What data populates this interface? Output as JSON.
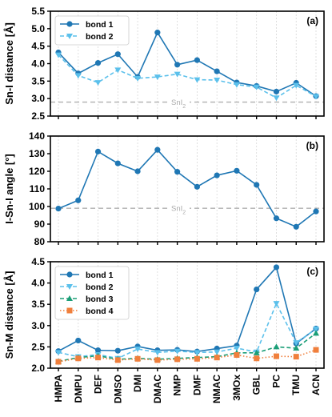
{
  "categories": [
    "HMPA",
    "DMPU",
    "DEF",
    "DMSO",
    "DMI",
    "DMAC",
    "NMP",
    "DMF",
    "NMAC",
    "3MOx",
    "GBL",
    "PC",
    "TMU",
    "ACN"
  ],
  "chart_data": [
    {
      "type": "line",
      "panel": "(a)",
      "ylabel": "Sn-I distance [Å]",
      "ylim": [
        2.5,
        5.5
      ],
      "yticks": [
        "2.5",
        "3.0",
        "3.5",
        "4.0",
        "4.5",
        "5.0",
        "5.5"
      ],
      "reference": {
        "label": "SnI2",
        "text": "SnI",
        "sub": "2",
        "value": 2.9
      },
      "series": [
        {
          "name": "bond 1",
          "style": "solid",
          "marker": "circle",
          "color": "#1f77b4",
          "values": [
            4.32,
            3.72,
            4.02,
            4.27,
            3.62,
            4.89,
            3.97,
            4.1,
            3.78,
            3.46,
            3.36,
            3.2,
            3.45,
            3.07
          ]
        },
        {
          "name": "bond 2",
          "style": "dashed",
          "marker": "triangle-down",
          "color": "#5bc0eb",
          "values": [
            4.25,
            3.66,
            3.46,
            3.82,
            3.58,
            3.62,
            3.7,
            3.54,
            3.53,
            3.4,
            3.33,
            3.02,
            3.38,
            3.06
          ]
        }
      ],
      "legend": "top-left"
    },
    {
      "type": "line",
      "panel": "(b)",
      "ylabel": "I-Sn-I angle [°]",
      "ylim": [
        80,
        140
      ],
      "yticks": [
        "80",
        "90",
        "100",
        "110",
        "120",
        "130",
        "140"
      ],
      "reference": {
        "label": "SnI2",
        "text": "SnI",
        "sub": "2",
        "value": 99
      },
      "series": [
        {
          "style": "solid",
          "marker": "circle",
          "color": "#1f77b4",
          "values": [
            98.8,
            103.5,
            131.2,
            124.5,
            120.0,
            132.2,
            119.7,
            111.2,
            117.7,
            120.3,
            112.3,
            93.3,
            88.5,
            97.2
          ]
        }
      ]
    },
    {
      "type": "line",
      "panel": "(c)",
      "ylabel": "Sn-M distance [Å]",
      "ylim": [
        2.0,
        4.5
      ],
      "yticks": [
        "2.0",
        "2.5",
        "3.0",
        "3.5",
        "4.0",
        "4.5"
      ],
      "series": [
        {
          "name": "bond 1",
          "style": "solid",
          "marker": "circle",
          "color": "#1f77b4",
          "values": [
            2.4,
            2.65,
            2.42,
            2.41,
            2.51,
            2.42,
            2.43,
            2.39,
            2.46,
            2.53,
            3.85,
            4.37,
            2.58,
            2.93
          ]
        },
        {
          "name": "bond 2",
          "style": "dashed",
          "marker": "triangle-down",
          "color": "#5bc0eb",
          "values": [
            2.37,
            2.27,
            2.32,
            2.23,
            2.45,
            2.37,
            2.4,
            2.37,
            2.38,
            2.47,
            2.38,
            3.52,
            2.6,
            2.92
          ]
        },
        {
          "name": "bond 3",
          "style": "dashed",
          "marker": "triangle-up",
          "color": "#1b9e77",
          "values": [
            2.16,
            2.25,
            2.29,
            2.21,
            2.23,
            2.21,
            2.23,
            2.25,
            2.27,
            2.36,
            2.36,
            2.5,
            2.47,
            2.82
          ]
        },
        {
          "name": "bond 4",
          "style": "dotted",
          "marker": "square",
          "color": "#f07f3c",
          "values": [
            2.15,
            2.23,
            2.25,
            2.19,
            2.22,
            2.19,
            2.21,
            2.22,
            2.25,
            2.31,
            2.23,
            2.28,
            2.27,
            2.43
          ]
        }
      ],
      "legend": "top-left"
    }
  ]
}
